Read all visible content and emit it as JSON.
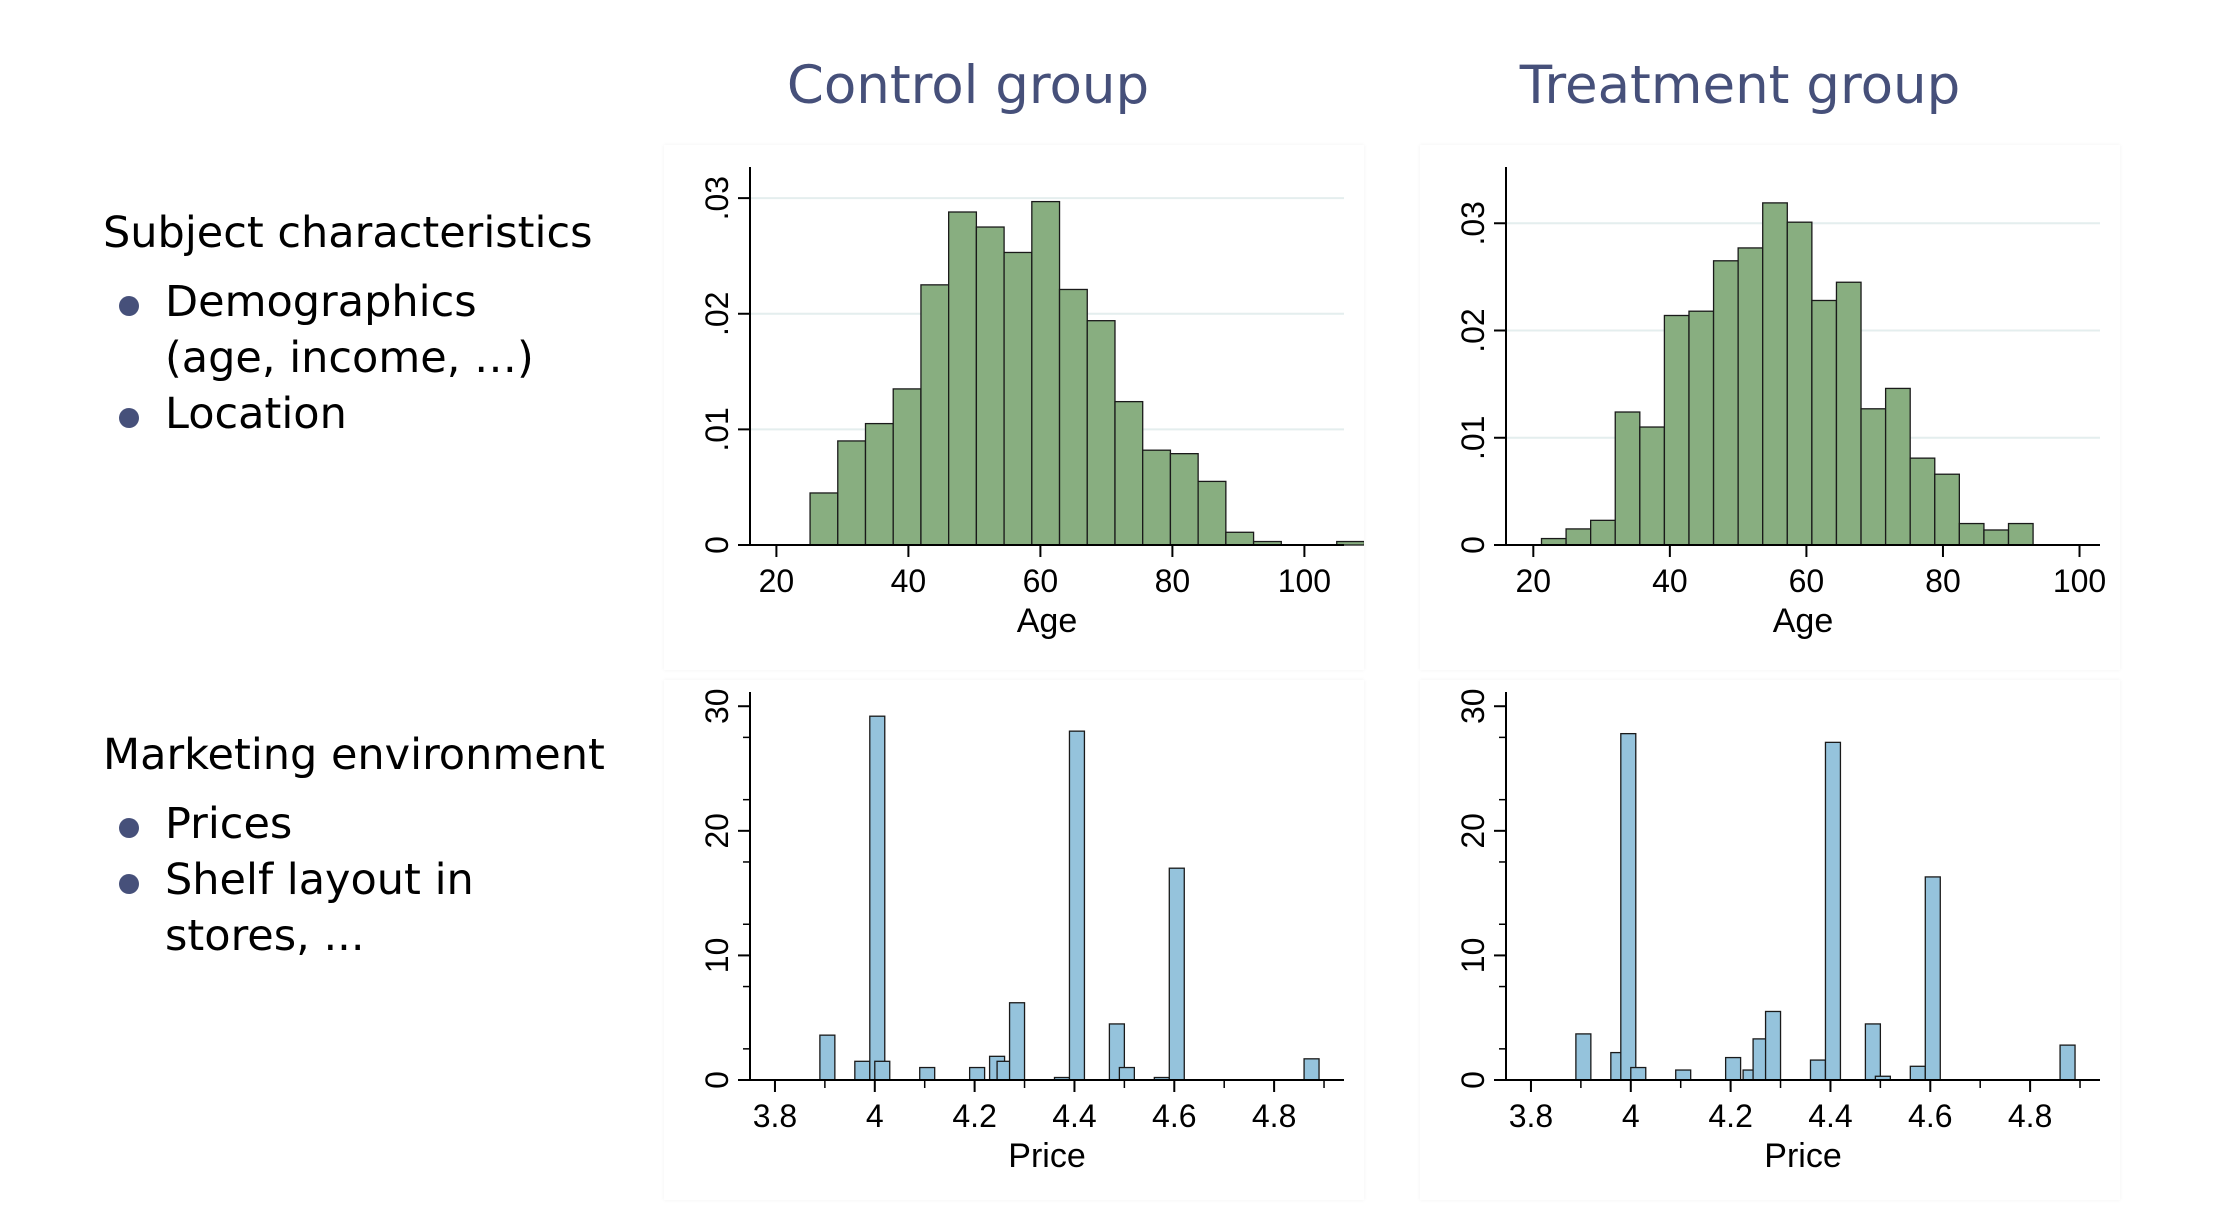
{
  "columns": {
    "control": "Control group",
    "treatment": "Treatment group"
  },
  "sections": [
    {
      "heading": "Subject characteristics",
      "bullets": [
        "Demographics (age, income, …)",
        "Location"
      ]
    },
    {
      "heading": "Marketing environment",
      "bullets": [
        "Prices",
        "Shelf layout in stores, ..."
      ]
    }
  ],
  "colors": {
    "title": "#46507a",
    "bullet": "#46507a",
    "age_bar": "#88ae80",
    "price_bar": "#95c3dc",
    "grid": "#e4eeee"
  },
  "chart_data": [
    {
      "id": "control-age",
      "type": "bar",
      "group": "Control group",
      "xlabel": "Age",
      "ylabel": "",
      "xlim": [
        16,
        106
      ],
      "ylim": [
        0,
        0.032
      ],
      "xticks": [
        20,
        40,
        60,
        80,
        100
      ],
      "xtick_labels": [
        "20",
        "40",
        "60",
        "80",
        "100"
      ],
      "yticks": [
        0,
        0.01,
        0.02,
        0.03
      ],
      "ytick_labels": [
        "0",
        ".01",
        ".02",
        ".03"
      ],
      "grid": true,
      "bar_width": 4.2,
      "bars": [
        [
          25.1,
          0.0045
        ],
        [
          29.3,
          0.009
        ],
        [
          33.5,
          0.0105
        ],
        [
          37.7,
          0.0135
        ],
        [
          41.9,
          0.0225
        ],
        [
          46.1,
          0.0288
        ],
        [
          50.3,
          0.0275
        ],
        [
          54.5,
          0.0253
        ],
        [
          58.7,
          0.0297
        ],
        [
          62.9,
          0.0221
        ],
        [
          67.1,
          0.0194
        ],
        [
          71.3,
          0.0124
        ],
        [
          75.5,
          0.0082
        ],
        [
          79.7,
          0.0079
        ],
        [
          83.9,
          0.0055
        ],
        [
          88.1,
          0.0011
        ],
        [
          92.3,
          0.0003
        ],
        [
          96.5,
          0
        ],
        [
          100.7,
          0
        ],
        [
          104.9,
          0.0003
        ]
      ]
    },
    {
      "id": "treatment-age",
      "type": "bar",
      "group": "Treatment group",
      "xlabel": "Age",
      "ylabel": "",
      "xlim": [
        16,
        103
      ],
      "ylim": [
        0,
        0.0345
      ],
      "xticks": [
        20,
        40,
        60,
        80,
        100
      ],
      "xtick_labels": [
        "20",
        "40",
        "60",
        "80",
        "100"
      ],
      "yticks": [
        0,
        0.01,
        0.02,
        0.03
      ],
      "ytick_labels": [
        "0",
        ".01",
        ".02",
        ".03"
      ],
      "grid": true,
      "bar_width": 3.6,
      "bars": [
        [
          21.2,
          0.0006
        ],
        [
          24.8,
          0.0015
        ],
        [
          28.4,
          0.0023
        ],
        [
          32,
          0.0124
        ],
        [
          35.6,
          0.011
        ],
        [
          39.2,
          0.0214
        ],
        [
          42.8,
          0.0218
        ],
        [
          46.4,
          0.0265
        ],
        [
          50,
          0.0277
        ],
        [
          53.6,
          0.0319
        ],
        [
          57.2,
          0.0301
        ],
        [
          60.8,
          0.0228
        ],
        [
          64.4,
          0.0245
        ],
        [
          68,
          0.0127
        ],
        [
          71.6,
          0.0146
        ],
        [
          75.2,
          0.0081
        ],
        [
          78.8,
          0.0066
        ],
        [
          82.4,
          0.002
        ],
        [
          86,
          0.0014
        ],
        [
          89.6,
          0.002
        ]
      ]
    },
    {
      "id": "control-price",
      "type": "bar",
      "group": "Control group",
      "xlabel": "Price",
      "ylabel": "",
      "xlim": [
        3.75,
        4.94
      ],
      "ylim": [
        0,
        30.5
      ],
      "xticks": [
        3.8,
        4,
        4.2,
        4.4,
        4.6,
        4.8
      ],
      "xtick_labels": [
        "3.8",
        "4",
        "4.2",
        "4.4",
        "4.6",
        "4.8"
      ],
      "yticks": [
        0,
        10,
        20,
        30
      ],
      "ytick_labels": [
        "0",
        "10",
        "20",
        "30"
      ],
      "grid": false,
      "bar_width": 0.03,
      "bars": [
        [
          3.89,
          3.6
        ],
        [
          3.96,
          1.5
        ],
        [
          3.99,
          29.2
        ],
        [
          4.0,
          1.5
        ],
        [
          4.09,
          1.0
        ],
        [
          4.19,
          1.0
        ],
        [
          4.23,
          1.9
        ],
        [
          4.245,
          1.5
        ],
        [
          4.27,
          6.2
        ],
        [
          4.36,
          0.2
        ],
        [
          4.39,
          28.0
        ],
        [
          4.47,
          4.5
        ],
        [
          4.49,
          1.0
        ],
        [
          4.56,
          0.2
        ],
        [
          4.59,
          17.0
        ],
        [
          4.86,
          1.7
        ]
      ]
    },
    {
      "id": "treatment-price",
      "type": "bar",
      "group": "Treatment group",
      "xlabel": "Price",
      "ylabel": "",
      "xlim": [
        3.75,
        4.94
      ],
      "ylim": [
        0,
        30.5
      ],
      "xticks": [
        3.8,
        4,
        4.2,
        4.4,
        4.6,
        4.8
      ],
      "xtick_labels": [
        "3.8",
        "4",
        "4.2",
        "4.4",
        "4.6",
        "4.8"
      ],
      "yticks": [
        0,
        10,
        20,
        30
      ],
      "ytick_labels": [
        "0",
        "10",
        "20",
        "30"
      ],
      "grid": false,
      "bar_width": 0.03,
      "bars": [
        [
          3.89,
          3.7
        ],
        [
          3.96,
          2.2
        ],
        [
          3.98,
          27.8
        ],
        [
          4.0,
          1.0
        ],
        [
          4.09,
          0.8
        ],
        [
          4.19,
          1.8
        ],
        [
          4.225,
          0.8
        ],
        [
          4.245,
          3.3
        ],
        [
          4.27,
          5.5
        ],
        [
          4.36,
          1.6
        ],
        [
          4.39,
          27.1
        ],
        [
          4.47,
          4.5
        ],
        [
          4.49,
          0.3
        ],
        [
          4.56,
          1.1
        ],
        [
          4.59,
          16.3
        ],
        [
          4.86,
          2.8
        ]
      ]
    }
  ]
}
